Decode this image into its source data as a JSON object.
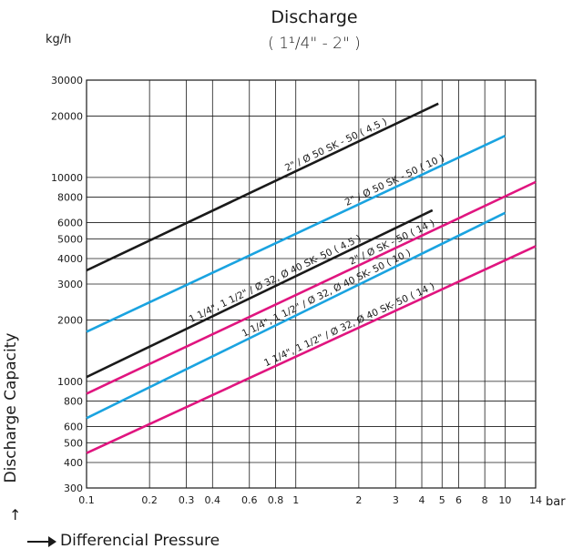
{
  "chart_data": {
    "type": "line",
    "title": "Discharge",
    "subtitle": "( 1¹/4\" - 2\" )",
    "ylabel": "Discharge Capacity",
    "xlabel": "Differencial Pressure",
    "yunit": "kg/h",
    "xunit": "bar",
    "xscale": "log",
    "yscale": "log",
    "xlim": [
      0.1,
      14
    ],
    "ylim": [
      300,
      30000
    ],
    "xticks": [
      0.1,
      0.2,
      0.3,
      0.4,
      0.6,
      0.8,
      1,
      2,
      3,
      4,
      5,
      6,
      8,
      10,
      14
    ],
    "xticklabels": [
      "0.1",
      "0.2",
      "0.3",
      "0.4",
      "0.6",
      "0.8",
      "1",
      "2",
      "3",
      "4",
      "5",
      "6",
      "8",
      "10",
      "14"
    ],
    "yticks": [
      300,
      400,
      500,
      600,
      800,
      1000,
      2000,
      3000,
      4000,
      5000,
      6000,
      8000,
      10000,
      20000,
      30000
    ],
    "yticklabels": [
      "300",
      "400",
      "500",
      "600",
      "800",
      "1000",
      "2000",
      "3000",
      "4000",
      "5000",
      "6000",
      "8000",
      "10000",
      "20000",
      "30000"
    ],
    "grid": true,
    "series": [
      {
        "name": "2\" / Ø 50 SK - 50 ( 4.5 )",
        "color": "#1a1a1a",
        "x": [
          0.1,
          4.8
        ],
        "y": [
          3500,
          23000
        ]
      },
      {
        "name": "2\" / Ø 50 SK - 50 ( 10 )",
        "color": "#1aa3e0",
        "x": [
          0.1,
          10
        ],
        "y": [
          1750,
          16000
        ]
      },
      {
        "name": "1 1/4\", 1 1/2\" / Ø 32, Ø 40 SK- 50 ( 4.5 )",
        "color": "#1a1a1a",
        "x": [
          0.1,
          4.5
        ],
        "y": [
          1050,
          6900
        ]
      },
      {
        "name": "2\" / Ø SK - 50 ( 14 )",
        "color": "#e0157f",
        "x": [
          0.1,
          14
        ],
        "y": [
          870,
          9500
        ]
      },
      {
        "name": "1 1/4\", 1 1/2\" / Ø 32, Ø 40 SK- 50 ( 10 )",
        "color": "#1aa3e0",
        "x": [
          0.1,
          10
        ],
        "y": [
          660,
          6700
        ]
      },
      {
        "name": "1 1/4\", 1 1/2\" / Ø 32, Ø 40 SK- 50 ( 14 )",
        "color": "#e0157f",
        "x": [
          0.1,
          14
        ],
        "y": [
          445,
          4600
        ]
      }
    ]
  }
}
